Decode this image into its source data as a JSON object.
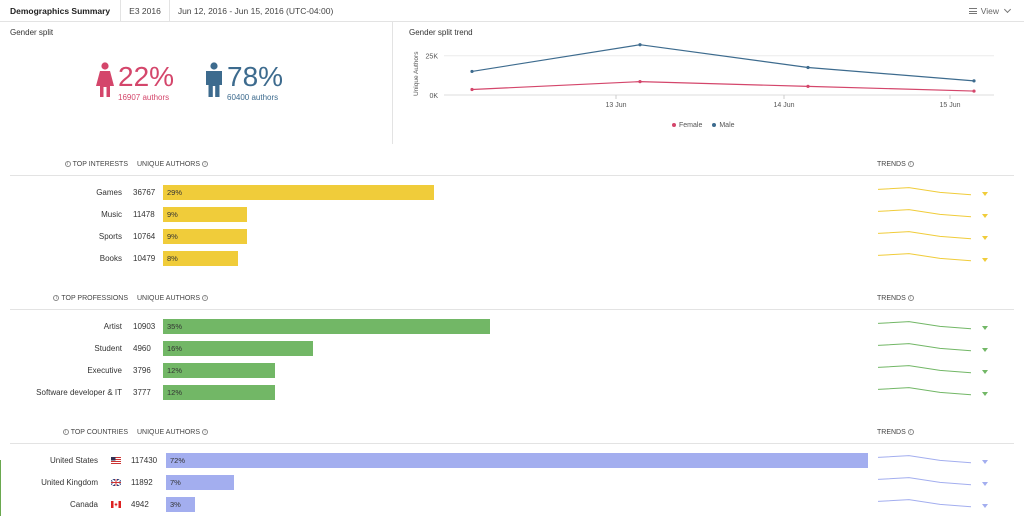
{
  "topbar": {
    "title": "Demographics Summary",
    "event": "E3 2016",
    "date_range": "Jun 12, 2016 - Jun 15, 2016 (UTC-04:00)",
    "view_label": "View",
    "view_icon": "list-icon"
  },
  "gender_split": {
    "title": "Gender split",
    "female": {
      "pct": "22%",
      "authors": "16907 authors",
      "color": "#d4466b",
      "icon": "female-person-icon"
    },
    "male": {
      "pct": "78%",
      "authors": "60400 authors",
      "color": "#3d6b8e",
      "icon": "male-person-icon"
    }
  },
  "gender_trend": {
    "title": "Gender split trend",
    "chart_data": {
      "type": "line",
      "title": "Gender split trend",
      "xlabel": "",
      "ylabel": "Unique Authors",
      "x": [
        "Jun 12",
        "Jun 13",
        "Jun 14",
        "Jun 15"
      ],
      "x_tick_labels": [
        "13 Jun",
        "14 Jun",
        "15 Jun"
      ],
      "y_tick_labels": [
        "0K",
        "25K"
      ],
      "ylim": [
        0,
        35000
      ],
      "grid": "horizontal",
      "legend": "bottom",
      "series": [
        {
          "name": "Female",
          "color": "#d4466b",
          "values": [
            3500,
            8500,
            5500,
            2500
          ]
        },
        {
          "name": "Male",
          "color": "#3d6b8e",
          "values": [
            15000,
            32000,
            17500,
            9000
          ]
        }
      ]
    }
  },
  "sections": [
    {
      "key": "interests",
      "title": "TOP INTERESTS",
      "unique_label": "UNIQUE AUTHORS",
      "trends_label": "TRENDS",
      "color": "#f0cc3a",
      "rows": [
        {
          "label": "Games",
          "count": "36767",
          "pct": "29%",
          "share": 0.29
        },
        {
          "label": "Music",
          "count": "11478",
          "pct": "9%",
          "share": 0.09
        },
        {
          "label": "Sports",
          "count": "10764",
          "pct": "9%",
          "share": 0.09
        },
        {
          "label": "Books",
          "count": "10479",
          "pct": "8%",
          "share": 0.08
        }
      ]
    },
    {
      "key": "professions",
      "title": "TOP PROFESSIONS",
      "unique_label": "UNIQUE AUTHORS",
      "trends_label": "TRENDS",
      "color": "#72b766",
      "rows": [
        {
          "label": "Artist",
          "count": "10903",
          "pct": "35%",
          "share": 0.35
        },
        {
          "label": "Student",
          "count": "4960",
          "pct": "16%",
          "share": 0.16
        },
        {
          "label": "Executive",
          "count": "3796",
          "pct": "12%",
          "share": 0.12
        },
        {
          "label": "Software developer & IT",
          "count": "3777",
          "pct": "12%",
          "share": 0.12
        }
      ]
    },
    {
      "key": "countries",
      "title": "TOP COUNTRIES",
      "unique_label": "UNIQUE AUTHORS",
      "trends_label": "TRENDS",
      "color": "#a3aeef",
      "rows": [
        {
          "label": "United States",
          "count": "117430",
          "pct": "72%",
          "share": 0.72,
          "flag": "us-flag-icon"
        },
        {
          "label": "United Kingdom",
          "count": "11892",
          "pct": "7%",
          "share": 0.07,
          "flag": "uk-flag-icon"
        },
        {
          "label": "Canada",
          "count": "4942",
          "pct": "3%",
          "share": 0.03,
          "flag": "canada-flag-icon"
        }
      ]
    }
  ]
}
